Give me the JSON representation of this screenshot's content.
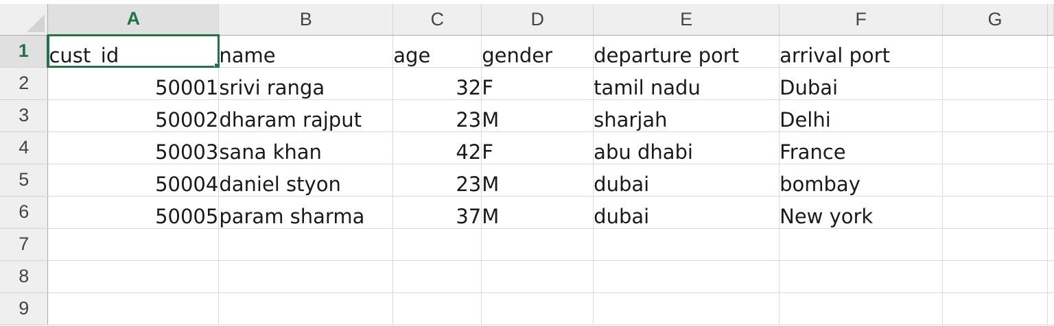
{
  "columns": [
    "A",
    "B",
    "C",
    "D",
    "E",
    "F",
    "G"
  ],
  "row_numbers": [
    "1",
    "2",
    "3",
    "4",
    "5",
    "6",
    "7",
    "8",
    "9"
  ],
  "active_cell": "A1",
  "rows": [
    [
      "cust_id",
      "name",
      "age",
      "gender",
      "departure port",
      "arrival port",
      ""
    ],
    [
      "50001",
      "srivi ranga",
      "32",
      "F",
      "tamil nadu",
      "Dubai",
      ""
    ],
    [
      "50002",
      "dharam rajput",
      "23",
      "M",
      "sharjah",
      "Delhi",
      ""
    ],
    [
      "50003",
      "sana khan",
      "42",
      "F",
      "abu dhabi",
      "France",
      ""
    ],
    [
      "50004",
      "daniel styon",
      "23",
      "M",
      "dubai",
      "bombay",
      ""
    ],
    [
      "50005",
      "param sharma",
      "37",
      "M",
      "dubai",
      "New york",
      ""
    ],
    [
      "",
      "",
      "",
      "",
      "",
      "",
      ""
    ],
    [
      "",
      "",
      "",
      "",
      "",
      "",
      ""
    ],
    [
      "",
      "",
      "",
      "",
      "",
      "",
      ""
    ]
  ],
  "colors": {
    "accent": "#217346",
    "header_bg": "#efefef",
    "gridline": "#d9d9d9"
  },
  "icons": {
    "select_all": "select-all-triangle"
  }
}
